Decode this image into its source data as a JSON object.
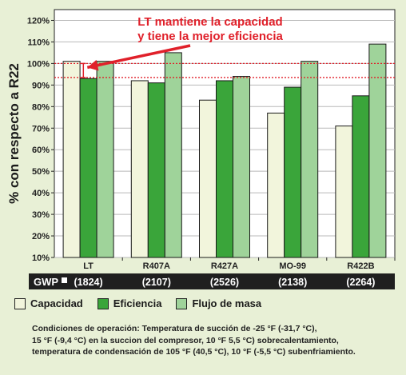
{
  "chart_data": {
    "type": "bar",
    "ylabel": "% con respecto a R22",
    "ylim": [
      10,
      125
    ],
    "yticks": [
      "10%",
      "20%",
      "30%",
      "40%",
      "50%",
      "60%",
      "70%",
      "80%",
      "90%",
      "100%",
      "110%",
      "120%"
    ],
    "categories": [
      "LT",
      "R407A",
      "R427A",
      "MO-99",
      "R422B"
    ],
    "series": [
      {
        "name": "Capacidad",
        "color": "#f2f5dc",
        "values": [
          101,
          92,
          83,
          77,
          71
        ]
      },
      {
        "name": "Eficiencia",
        "color": "#3aa53a",
        "values": [
          93,
          91,
          92,
          89,
          85
        ]
      },
      {
        "name": "Flujo de masa",
        "color": "#9fd39a",
        "values": [
          101,
          105,
          94,
          101,
          109
        ]
      }
    ],
    "reference_lines": [
      100,
      93.5
    ],
    "annotation": {
      "line1": "LT mantiene la capacidad",
      "line2": "y tiene la mejor eficiencia",
      "color": "#e0202a"
    },
    "gwp": {
      "label": "GWP",
      "values": [
        "(1824)",
        "(2107)",
        "(2526)",
        "(2138)",
        "(2264)"
      ]
    },
    "grid": true
  },
  "footnote": {
    "line1": "Condiciones de operación: Temperatura de succión de -25 °F (-31,7 °C),",
    "line2": "15 °F (-9,4 °C) en la succion del compresor, 10 °F 5,5 °C) sobrecalentamiento,",
    "line3": "temperatura de condensación de 105 °F (40,5 °C), 10 °F (-5,5 °C) subenfriamiento."
  }
}
